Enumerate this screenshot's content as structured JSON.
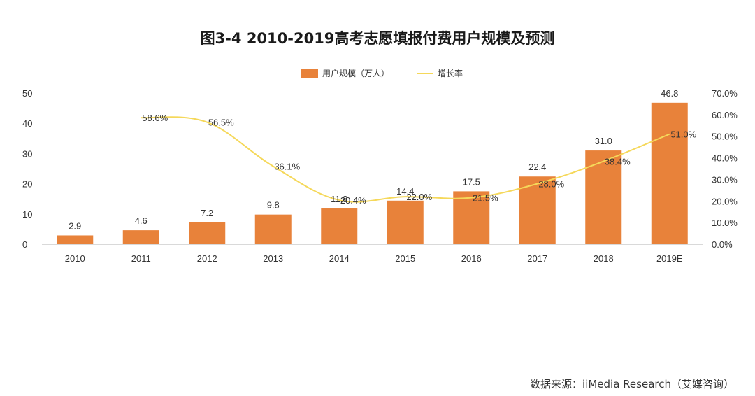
{
  "chart_data": {
    "type": "bar",
    "title": "图3-4 2010-2019高考志愿填报付费用户规模及预测",
    "categories": [
      "2010",
      "2011",
      "2012",
      "2013",
      "2014",
      "2015",
      "2016",
      "2017",
      "2018",
      "2019E"
    ],
    "series": [
      {
        "name": "用户规模（万人）",
        "type": "bar",
        "axis": "left",
        "color": "#E8823A",
        "values": [
          2.9,
          4.6,
          7.2,
          9.8,
          11.8,
          14.4,
          17.5,
          22.4,
          31.0,
          46.8
        ],
        "labels": [
          "2.9",
          "4.6",
          "7.2",
          "9.8",
          "11.8",
          "14.4",
          "17.5",
          "22.4",
          "31.0",
          "46.8"
        ]
      },
      {
        "name": "增长率",
        "type": "line",
        "axis": "right",
        "color": "#F5D85A",
        "values": [
          null,
          58.6,
          56.5,
          36.1,
          20.4,
          22.0,
          21.5,
          28.0,
          38.4,
          51.0
        ],
        "labels": [
          "",
          "58.6%",
          "56.5%",
          "36.1%",
          "20.4%",
          "22.0%",
          "21.5%",
          "28.0%",
          "38.4%",
          "51.0%"
        ]
      }
    ],
    "y_left": {
      "range": [
        0,
        50
      ],
      "ticks": [
        "0",
        "10",
        "20",
        "30",
        "40",
        "50"
      ]
    },
    "y_right": {
      "range": [
        0,
        70
      ],
      "ticks": [
        "0.0%",
        "10.0%",
        "20.0%",
        "30.0%",
        "40.0%",
        "50.0%",
        "60.0%",
        "70.0%"
      ]
    },
    "grid": false,
    "legend": "top-center"
  },
  "source": "数据来源：iiMedia Research（艾媒咨询）"
}
